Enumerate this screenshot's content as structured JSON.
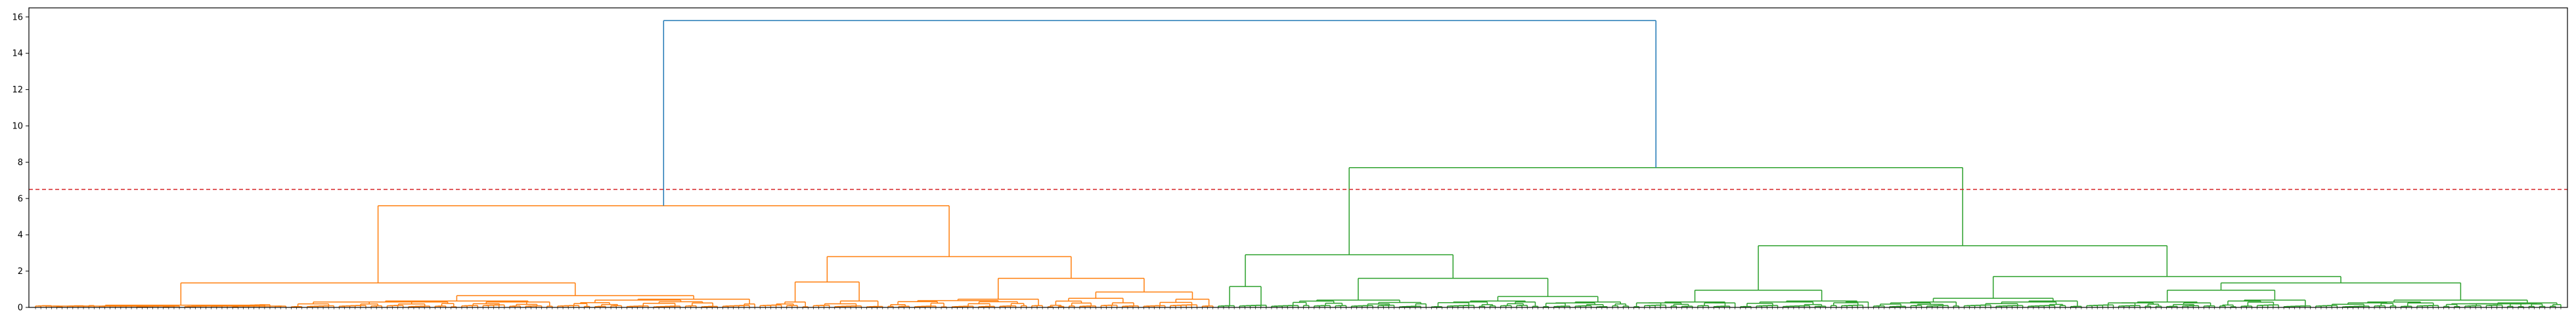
{
  "chart_data": {
    "type": "dendrogram",
    "title": "",
    "xlabel": "",
    "ylabel": "",
    "ylim": [
      0,
      16.5
    ],
    "yticks": [
      "0",
      "2",
      "4",
      "6",
      "8",
      "10",
      "12",
      "14",
      "16"
    ],
    "threshold": 6.5,
    "threshold_color": "#d62728",
    "colors": {
      "root": "#1f77b4",
      "cluster_a": "#ff7f0e",
      "cluster_b": "#2ca02c"
    },
    "n_leaves": 475,
    "leaf_labels_note_excluded": true,
    "root": {
      "height": 15.8,
      "children": [
        "cluster_a",
        "cluster_b"
      ]
    },
    "clusters": {
      "cluster_a": {
        "color_key": "cluster_a",
        "height": 5.6,
        "leaf_range": [
          0,
          222
        ]
      },
      "cluster_b": {
        "color_key": "cluster_b",
        "height": 7.7,
        "leaf_range": [
          222,
          475
        ]
      }
    },
    "merges": [
      {
        "name": "a-left",
        "height": 1.35,
        "children": [
          "a-left-1",
          "a-left-2"
        ]
      },
      {
        "name": "a-right",
        "height": 2.8,
        "children": [
          "a-right-1",
          "a-right-2"
        ]
      },
      {
        "name": "a-right-1",
        "height": 1.4
      },
      {
        "name": "a-right-2",
        "height": 1.6
      },
      {
        "name": "a-right-2b",
        "height": 0.85
      },
      {
        "name": "a-left-2",
        "height": 0.65
      },
      {
        "name": "b-left",
        "height": 2.9,
        "children": [
          "b-left-1",
          "b-left-2"
        ]
      },
      {
        "name": "b-left-1",
        "height": 1.15
      },
      {
        "name": "b-left-2",
        "height": 1.6
      },
      {
        "name": "b-left-2b",
        "height": 0.6
      },
      {
        "name": "b-right",
        "height": 3.4,
        "children": [
          "b-right-1",
          "b-right-2"
        ]
      },
      {
        "name": "b-right-1",
        "height": 0.95
      },
      {
        "name": "b-right-2",
        "height": 1.7
      },
      {
        "name": "b-right-2b",
        "height": 0.95
      },
      {
        "name": "b-right-2c",
        "height": 0.4
      }
    ]
  }
}
